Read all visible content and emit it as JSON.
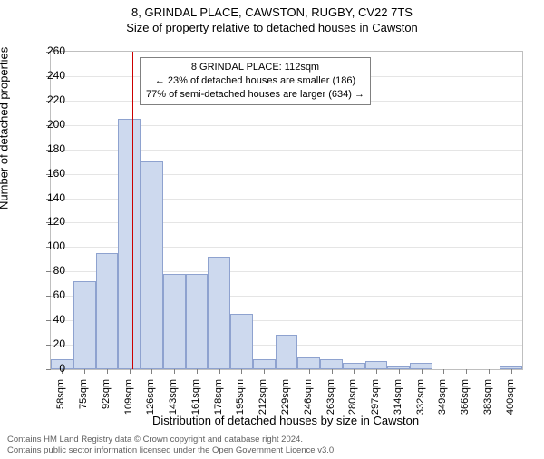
{
  "title_main": "8, GRINDAL PLACE, CAWSTON, RUGBY, CV22 7TS",
  "title_sub": "Size of property relative to detached houses in Cawston",
  "ylabel": "Number of detached properties",
  "xlabel": "Distribution of detached houses by size in Cawston",
  "callout": {
    "line1": "8 GRINDAL PLACE: 112sqm",
    "line2": "← 23% of detached houses are smaller (186)",
    "line3": "77% of semi-detached houses are larger (634) →"
  },
  "footer": {
    "line1": "Contains HM Land Registry data © Crown copyright and database right 2024.",
    "line2": "Contains public sector information licensed under the Open Government Licence v3.0."
  },
  "chart": {
    "type": "histogram",
    "x_start": 50,
    "x_end": 408,
    "bin_width_sqm": 17,
    "ylim": [
      0,
      260
    ],
    "ytick_step": 20,
    "xtick_labels": [
      "58sqm",
      "75sqm",
      "92sqm",
      "109sqm",
      "126sqm",
      "143sqm",
      "161sqm",
      "178sqm",
      "195sqm",
      "212sqm",
      "229sqm",
      "246sqm",
      "263sqm",
      "280sqm",
      "297sqm",
      "314sqm",
      "332sqm",
      "349sqm",
      "366sqm",
      "383sqm",
      "400sqm"
    ],
    "bars": [
      8,
      72,
      95,
      205,
      170,
      78,
      78,
      92,
      45,
      8,
      28,
      10,
      8,
      5,
      7,
      2,
      5,
      0,
      0,
      0,
      2
    ],
    "bar_fill": "#cdd9ee",
    "bar_stroke": "#8ea2cf",
    "ref_line_x": 112,
    "ref_line_color": "#cc0000",
    "background_color": "#ffffff",
    "grid_color": "#e5e5e5",
    "border_color": "#bfbfbf",
    "title_fontsize": 13,
    "label_fontsize": 13,
    "tick_fontsize": 12,
    "xtick_fontsize": 11
  }
}
